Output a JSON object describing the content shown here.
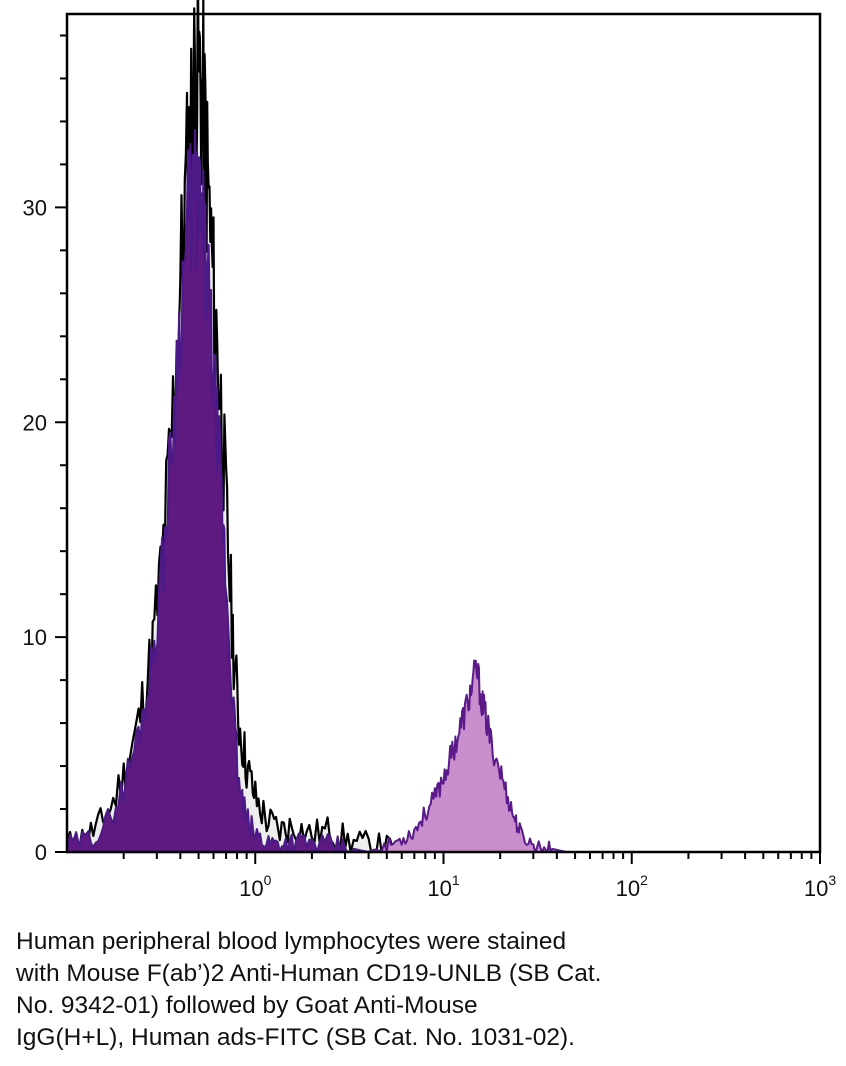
{
  "chart_data": {
    "type": "area",
    "title": "",
    "xlabel": "",
    "ylabel": "",
    "x_scale": "log",
    "xlim": [
      0.1,
      1000
    ],
    "ylim": [
      0,
      39
    ],
    "x_ticks": [
      {
        "base": "10",
        "exp": "0",
        "value": 1
      },
      {
        "base": "10",
        "exp": "1",
        "value": 10
      },
      {
        "base": "10",
        "exp": "2",
        "value": 100
      },
      {
        "base": "10",
        "exp": "3",
        "value": 1000
      }
    ],
    "y_ticks": [
      {
        "label": "0",
        "value": 0
      },
      {
        "label": "10",
        "value": 10
      },
      {
        "label": "20",
        "value": 20
      },
      {
        "label": "30",
        "value": 30
      }
    ],
    "series": [
      {
        "style": "black-outline",
        "color": "#000000",
        "fill": "#eeeeee",
        "x": [
          0.1,
          0.13,
          0.16,
          0.2,
          0.24,
          0.28,
          0.32,
          0.36,
          0.4,
          0.44,
          0.47,
          0.5,
          0.53,
          0.56,
          0.6,
          0.65,
          0.7,
          0.76,
          0.82,
          0.9,
          1.0,
          1.15,
          1.35,
          1.6,
          2.0,
          2.5,
          3.1,
          4.0,
          5.0,
          6.5
        ],
        "y": [
          0.3,
          0.8,
          1.5,
          3.5,
          6.0,
          9.0,
          13.5,
          19.5,
          26.5,
          32.0,
          35.5,
          36.5,
          34.5,
          31.0,
          26.0,
          21.5,
          16.0,
          10.0,
          6.0,
          4.0,
          2.5,
          1.5,
          1.0,
          1.2,
          0.8,
          1.0,
          0.5,
          0.3,
          0.2,
          0.0
        ]
      },
      {
        "style": "purple-filled",
        "color": "#4b1a87",
        "fill": "#5e1a80",
        "x": [
          0.1,
          0.13,
          0.16,
          0.2,
          0.24,
          0.28,
          0.32,
          0.36,
          0.4,
          0.44,
          0.47,
          0.5,
          0.53,
          0.56,
          0.6,
          0.65,
          0.7,
          0.76,
          0.82,
          0.9,
          1.0,
          1.15,
          1.35,
          1.6,
          2.0,
          2.5,
          3.1,
          4.0
        ],
        "y": [
          0.3,
          0.6,
          1.2,
          3.0,
          5.5,
          8.5,
          13.0,
          19.0,
          25.0,
          29.5,
          30.5,
          30.0,
          28.5,
          26.0,
          22.0,
          17.5,
          12.5,
          7.0,
          3.0,
          1.5,
          0.8,
          0.5,
          0.4,
          0.5,
          0.4,
          0.3,
          0.2,
          0.0
        ]
      },
      {
        "style": "pink-filled",
        "color": "#5b1a8a",
        "fill": "#c98fcc",
        "x": [
          4.0,
          5.0,
          6.0,
          7.0,
          8.0,
          9.0,
          10.0,
          11.0,
          12.0,
          13.0,
          14.0,
          15.0,
          16.0,
          17.0,
          18.0,
          20.0,
          22.0,
          24.0,
          26.0,
          30.0,
          35.0,
          40.0,
          45.0
        ],
        "y": [
          0.0,
          0.3,
          0.6,
          1.0,
          1.8,
          2.5,
          3.5,
          4.5,
          5.5,
          6.5,
          7.5,
          8.5,
          7.0,
          6.0,
          5.0,
          3.8,
          2.5,
          1.5,
          0.8,
          0.3,
          0.2,
          0.1,
          0.0
        ]
      }
    ]
  },
  "caption": {
    "lines": [
      "Human peripheral blood lymphocytes were stained",
      "with Mouse F(ab’)2 Anti-Human CD19-UNLB (SB Cat.",
      "No. 9342-01) followed by Goat Anti-Mouse",
      "IgG(H+L), Human ads-FITC (SB Cat. No. 1031-02)."
    ]
  }
}
